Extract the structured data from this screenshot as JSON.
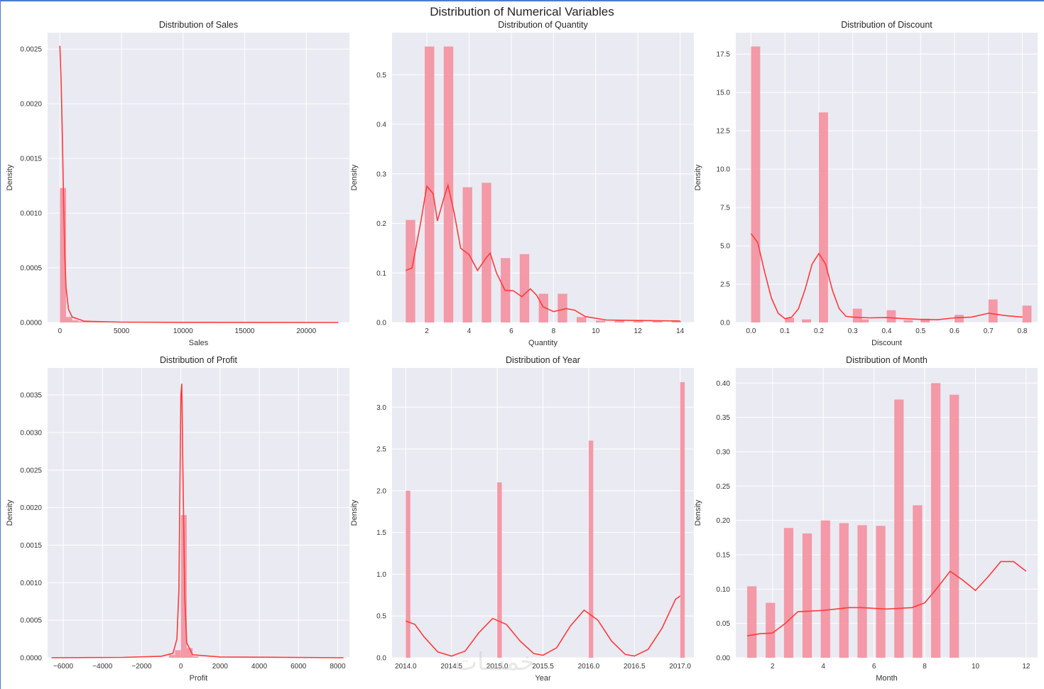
{
  "figure": {
    "title": "Distribution of Numerical Variables",
    "colors": {
      "bar": "#f4909e",
      "kde": "#ff3b3b",
      "panel": "#eaeaf2",
      "grid": "#ffffff"
    }
  },
  "watermark": "خمسات",
  "chart_data": [
    {
      "type": "bar",
      "title": "Distribution of Sales",
      "xlabel": "Sales",
      "ylabel": "Density",
      "xlim": [
        -1000,
        23500
      ],
      "ylim": [
        0,
        0.00265
      ],
      "xticks": [
        0,
        5000,
        10000,
        15000,
        20000
      ],
      "xtick_labels": [
        "0",
        "5000",
        "10000",
        "15000",
        "20000"
      ],
      "yticks": [
        0,
        0.0005,
        0.001,
        0.0015,
        0.002,
        0.0025
      ],
      "ytick_labels": [
        "0.0000",
        "0.0005",
        "0.0010",
        "0.0015",
        "0.0020",
        "0.0025"
      ],
      "bin_width": 500,
      "bins": [
        [
          0,
          0.00123
        ],
        [
          500,
          5e-05
        ],
        [
          1000,
          2e-05
        ],
        [
          1500,
          1e-05
        ],
        [
          2000,
          6e-06
        ],
        [
          2500,
          4e-06
        ],
        [
          3000,
          3e-06
        ],
        [
          3500,
          2e-06
        ]
      ],
      "kde": [
        [
          0,
          0.00253
        ],
        [
          100,
          0.0022
        ],
        [
          200,
          0.0017
        ],
        [
          300,
          0.0011
        ],
        [
          400,
          0.0006
        ],
        [
          500,
          0.00032
        ],
        [
          700,
          0.00012
        ],
        [
          1000,
          5e-05
        ],
        [
          2000,
          1.2e-05
        ],
        [
          5000,
          3e-06
        ],
        [
          10000,
          1e-06
        ],
        [
          22600,
          0
        ]
      ]
    },
    {
      "type": "bar",
      "title": "Distribution of Quantity",
      "xlabel": "Quantity",
      "ylabel": "Density",
      "xlim": [
        0.35,
        14.65
      ],
      "ylim": [
        0,
        0.585
      ],
      "xticks": [
        2,
        4,
        6,
        8,
        10,
        12,
        14
      ],
      "xtick_labels": [
        "2",
        "4",
        "6",
        "8",
        "10",
        "12",
        "14"
      ],
      "yticks": [
        0,
        0.1,
        0.2,
        0.3,
        0.4,
        0.5
      ],
      "ytick_labels": [
        "0.0",
        "0.1",
        "0.2",
        "0.3",
        "0.4",
        "0.5"
      ],
      "bin_width": 0.45,
      "bins": [
        [
          1,
          0.207
        ],
        [
          1.9,
          0.557
        ],
        [
          2.8,
          0.557
        ],
        [
          3.7,
          0.273
        ],
        [
          4.6,
          0.282
        ],
        [
          5.5,
          0.13
        ],
        [
          6.4,
          0.138
        ],
        [
          7.3,
          0.058
        ],
        [
          8.2,
          0.058
        ],
        [
          9.1,
          0.011
        ],
        [
          10,
          0.004
        ],
        [
          10.9,
          0.004
        ],
        [
          11.8,
          0.003
        ],
        [
          12.7,
          0.003
        ],
        [
          13.6,
          0.003
        ]
      ],
      "kde": [
        [
          1,
          0.105
        ],
        [
          1.3,
          0.11
        ],
        [
          1.7,
          0.2
        ],
        [
          2,
          0.275
        ],
        [
          2.3,
          0.26
        ],
        [
          2.5,
          0.205
        ],
        [
          2.8,
          0.25
        ],
        [
          3,
          0.277
        ],
        [
          3.3,
          0.22
        ],
        [
          3.6,
          0.15
        ],
        [
          4,
          0.137
        ],
        [
          4.4,
          0.105
        ],
        [
          4.8,
          0.13
        ],
        [
          5,
          0.14
        ],
        [
          5.3,
          0.1
        ],
        [
          5.7,
          0.065
        ],
        [
          6.1,
          0.064
        ],
        [
          6.5,
          0.052
        ],
        [
          6.9,
          0.068
        ],
        [
          7.2,
          0.055
        ],
        [
          7.5,
          0.032
        ],
        [
          8,
          0.022
        ],
        [
          8.3,
          0.025
        ],
        [
          8.6,
          0.028
        ],
        [
          9,
          0.025
        ],
        [
          9.5,
          0.012
        ],
        [
          10.5,
          0.005
        ],
        [
          12,
          0.004
        ],
        [
          14,
          0.003
        ]
      ]
    },
    {
      "type": "bar",
      "title": "Distribution of Discount",
      "xlabel": "Discount",
      "ylabel": "Density",
      "xlim": [
        -0.045,
        0.845
      ],
      "ylim": [
        0,
        18.9
      ],
      "xticks": [
        0,
        0.1,
        0.2,
        0.3,
        0.4,
        0.5,
        0.6,
        0.7,
        0.8
      ],
      "xtick_labels": [
        "0.0",
        "0.1",
        "0.2",
        "0.3",
        "0.4",
        "0.5",
        "0.6",
        "0.7",
        "0.8"
      ],
      "yticks": [
        0,
        2.5,
        5,
        7.5,
        10,
        12.5,
        15,
        17.5
      ],
      "ytick_labels": [
        "0.0",
        "2.5",
        "5.0",
        "7.5",
        "10.0",
        "12.5",
        "15.0",
        "17.5"
      ],
      "bin_width": 0.027,
      "bins": [
        [
          0,
          18
        ],
        [
          0.1,
          0.3
        ],
        [
          0.15,
          0.2
        ],
        [
          0.2,
          13.7
        ],
        [
          0.3,
          0.9
        ],
        [
          0.32,
          0.2
        ],
        [
          0.4,
          0.8
        ],
        [
          0.45,
          0.15
        ],
        [
          0.5,
          0.25
        ],
        [
          0.6,
          0.5
        ],
        [
          0.7,
          1.5
        ],
        [
          0.8,
          1.1
        ]
      ],
      "kde": [
        [
          0,
          5.8
        ],
        [
          0.02,
          5.2
        ],
        [
          0.04,
          3.3
        ],
        [
          0.06,
          1.6
        ],
        [
          0.08,
          0.6
        ],
        [
          0.1,
          0.25
        ],
        [
          0.12,
          0.35
        ],
        [
          0.14,
          0.9
        ],
        [
          0.16,
          2.2
        ],
        [
          0.18,
          3.8
        ],
        [
          0.2,
          4.5
        ],
        [
          0.22,
          3.8
        ],
        [
          0.24,
          2.1
        ],
        [
          0.26,
          0.9
        ],
        [
          0.28,
          0.4
        ],
        [
          0.3,
          0.35
        ],
        [
          0.35,
          0.3
        ],
        [
          0.4,
          0.32
        ],
        [
          0.45,
          0.25
        ],
        [
          0.5,
          0.2
        ],
        [
          0.55,
          0.18
        ],
        [
          0.6,
          0.3
        ],
        [
          0.65,
          0.35
        ],
        [
          0.7,
          0.6
        ],
        [
          0.75,
          0.45
        ],
        [
          0.8,
          0.35
        ]
      ]
    },
    {
      "type": "bar",
      "title": "Distribution of Profit",
      "xlabel": "Profit",
      "ylabel": "Density",
      "xlim": [
        -6800,
        8600
      ],
      "ylim": [
        0,
        0.00386
      ],
      "xticks": [
        -6000,
        -4000,
        -2000,
        0,
        2000,
        4000,
        6000,
        8000
      ],
      "xtick_labels": [
        "−6000",
        "−4000",
        "−2000",
        "0",
        "2000",
        "4000",
        "6000",
        "8000"
      ],
      "yticks": [
        0,
        0.0005,
        0.001,
        0.0015,
        0.002,
        0.0025,
        0.003,
        0.0035
      ],
      "ytick_labels": [
        "0.0000",
        "0.0005",
        "0.0010",
        "0.0015",
        "0.0020",
        "0.0025",
        "0.0030",
        "0.0035"
      ],
      "bin_width": 300,
      "bins": [
        [
          -600,
          4e-05
        ],
        [
          -300,
          0.0001
        ],
        [
          0,
          0.0019
        ],
        [
          300,
          0.00013
        ],
        [
          600,
          2e-05
        ]
      ],
      "kde": [
        [
          -6600,
          0
        ],
        [
          -3000,
          5e-06
        ],
        [
          -1000,
          2e-05
        ],
        [
          -400,
          6e-05
        ],
        [
          -200,
          0.00025
        ],
        [
          -100,
          0.0009
        ],
        [
          0,
          0.0035
        ],
        [
          50,
          0.00365
        ],
        [
          100,
          0.0026
        ],
        [
          200,
          0.0008
        ],
        [
          300,
          0.0002
        ],
        [
          600,
          4e-05
        ],
        [
          2000,
          1e-05
        ],
        [
          8300,
          0
        ]
      ]
    },
    {
      "type": "bar",
      "title": "Distribution of Year",
      "xlabel": "Year",
      "ylabel": "Density",
      "xlim": [
        2013.85,
        2017.15
      ],
      "ylim": [
        0,
        3.47
      ],
      "xticks": [
        2014,
        2014.5,
        2015,
        2015.5,
        2016,
        2016.5,
        2017
      ],
      "xtick_labels": [
        "2014.0",
        "2014.5",
        "2015.0",
        "2015.5",
        "2016.0",
        "2016.5",
        "2017.0"
      ],
      "yticks": [
        0,
        0.5,
        1,
        1.5,
        2,
        2.5,
        3
      ],
      "ytick_labels": [
        "0.0",
        "0.5",
        "1.0",
        "1.5",
        "2.0",
        "2.5",
        "3.0"
      ],
      "bin_width": 0.05,
      "bins": [
        [
          2014,
          2.0
        ],
        [
          2015,
          2.1
        ],
        [
          2016,
          2.6
        ],
        [
          2017,
          3.3
        ]
      ],
      "kde": [
        [
          2014,
          0.44
        ],
        [
          2014.1,
          0.4
        ],
        [
          2014.2,
          0.25
        ],
        [
          2014.35,
          0.07
        ],
        [
          2014.5,
          0.02
        ],
        [
          2014.65,
          0.08
        ],
        [
          2014.8,
          0.3
        ],
        [
          2014.95,
          0.47
        ],
        [
          2015.1,
          0.4
        ],
        [
          2015.25,
          0.2
        ],
        [
          2015.4,
          0.05
        ],
        [
          2015.5,
          0.03
        ],
        [
          2015.65,
          0.12
        ],
        [
          2015.8,
          0.38
        ],
        [
          2015.95,
          0.57
        ],
        [
          2016.1,
          0.45
        ],
        [
          2016.25,
          0.2
        ],
        [
          2016.4,
          0.04
        ],
        [
          2016.5,
          0.02
        ],
        [
          2016.65,
          0.1
        ],
        [
          2016.8,
          0.35
        ],
        [
          2016.95,
          0.7
        ],
        [
          2017,
          0.74
        ]
      ]
    },
    {
      "type": "bar",
      "title": "Distribution of Month",
      "xlabel": "Month",
      "ylabel": "Density",
      "xlim": [
        0.55,
        12.45
      ],
      "ylim": [
        0,
        0.422
      ],
      "xticks": [
        2,
        4,
        6,
        8,
        10,
        12
      ],
      "xtick_labels": [
        "2",
        "4",
        "6",
        "8",
        "10",
        "12"
      ],
      "yticks": [
        0,
        0.05,
        0.1,
        0.15,
        0.2,
        0.25,
        0.3,
        0.35,
        0.4
      ],
      "ytick_labels": [
        "0.00",
        "0.05",
        "0.10",
        "0.15",
        "0.20",
        "0.25",
        "0.30",
        "0.35",
        "0.40"
      ],
      "bin_width": 0.37,
      "bins": [
        [
          1,
          0.104
        ],
        [
          1.73,
          0.08
        ],
        [
          2.45,
          0.189
        ],
        [
          3.18,
          0.181
        ],
        [
          3.9,
          0.2
        ],
        [
          4.63,
          0.196
        ],
        [
          5.35,
          0.193
        ],
        [
          6.08,
          0.192
        ],
        [
          6.8,
          0.376
        ],
        [
          7.53,
          0.222
        ],
        [
          8.25,
          0.4
        ],
        [
          8.98,
          0.383
        ]
      ],
      "kde_x_note": "bins positioned by bin start in month units",
      "kde": [
        [
          1,
          0.032
        ],
        [
          1.5,
          0.035
        ],
        [
          2,
          0.036
        ],
        [
          2.5,
          0.05
        ],
        [
          3,
          0.067
        ],
        [
          3.5,
          0.068
        ],
        [
          4,
          0.069
        ],
        [
          4.5,
          0.071
        ],
        [
          5,
          0.073
        ],
        [
          5.5,
          0.073
        ],
        [
          6,
          0.072
        ],
        [
          6.5,
          0.071
        ],
        [
          7,
          0.072
        ],
        [
          7.5,
          0.073
        ],
        [
          8,
          0.08
        ],
        [
          8.5,
          0.102
        ],
        [
          9,
          0.126
        ],
        [
          9.5,
          0.113
        ],
        [
          10,
          0.098
        ],
        [
          10.5,
          0.118
        ],
        [
          11,
          0.14
        ],
        [
          11.5,
          0.14
        ],
        [
          12,
          0.126
        ]
      ]
    }
  ]
}
